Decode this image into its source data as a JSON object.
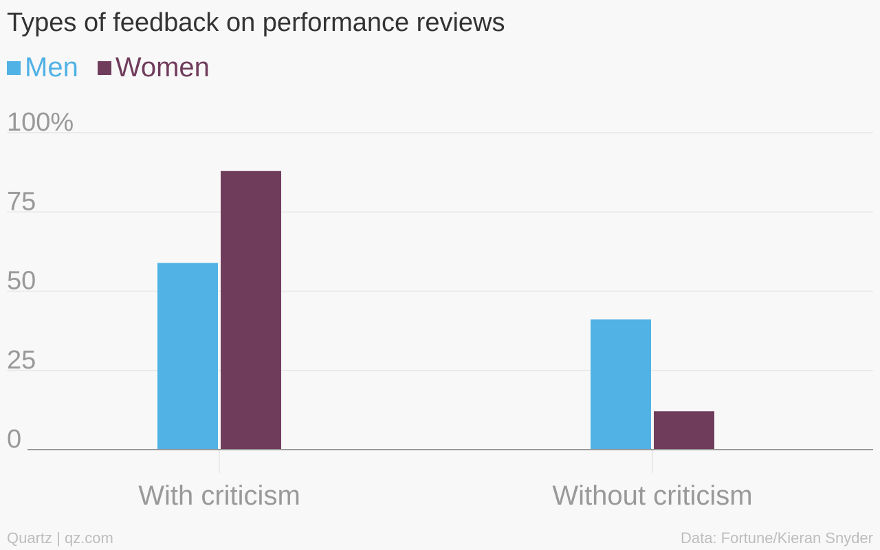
{
  "chart_data": {
    "type": "bar",
    "title": "Types of feedback on performance reviews",
    "categories": [
      "With criticism",
      "Without criticism"
    ],
    "series": [
      {
        "name": "Men",
        "values": [
          58.9,
          41.1
        ],
        "color": "#51b2e5"
      },
      {
        "name": "Women",
        "values": [
          87.9,
          12.1
        ],
        "color": "#703c5c"
      }
    ],
    "ylim": [
      0,
      100
    ],
    "yticks": [
      0,
      25,
      50,
      75,
      100
    ],
    "ytick_labels": [
      "0",
      "25",
      "50",
      "75",
      "100%"
    ],
    "legend_position": "top-left",
    "grid": true
  },
  "footer": {
    "source_left": "Quartz | qz.com",
    "source_right": "Data: Fortune/Kieran Snyder"
  },
  "colors": {
    "background": "#f8f8f8",
    "gridline": "#e6e6e6",
    "axis": "#999999",
    "tick_label": "#999999"
  }
}
